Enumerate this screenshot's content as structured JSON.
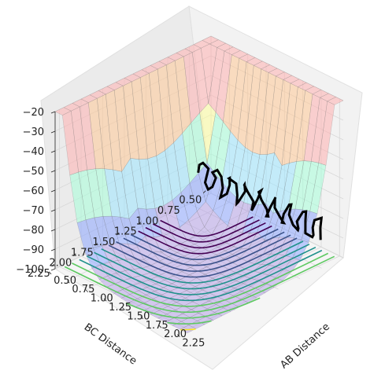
{
  "chart_data": {
    "type": "surface3d",
    "xlabel": "AB Distance",
    "ylabel": "BC Distance",
    "zlabel": "",
    "x_ticks": [
      "0.50",
      "0.75",
      "1.00",
      "1.25",
      "1.50",
      "1.75",
      "2.00",
      "2.25"
    ],
    "y_ticks": [
      "0.50",
      "0.75",
      "1.00",
      "1.25",
      "1.50",
      "1.75",
      "2.00",
      "2.25"
    ],
    "z_ticks": [
      "−100",
      "−90",
      "−80",
      "−70",
      "−60",
      "−50",
      "−40",
      "−30",
      "−20"
    ],
    "xlim": [
      0.5,
      2.3
    ],
    "ylim": [
      0.5,
      2.3
    ],
    "zlim": [
      -100,
      -20
    ],
    "surface_color_bands": [
      "#ffb0b0",
      "#ffc896",
      "#ffff9c",
      "#a6ffd8",
      "#9ce6ff",
      "#8ca6ff",
      "#b5a0e6"
    ],
    "contour_colormap": [
      "#440154",
      "#3b528b",
      "#21918c",
      "#5ec962",
      "#fde725"
    ],
    "trajectory_color": "#000000",
    "grid": true,
    "view": "3d, looking from positive AB/BC corner"
  }
}
